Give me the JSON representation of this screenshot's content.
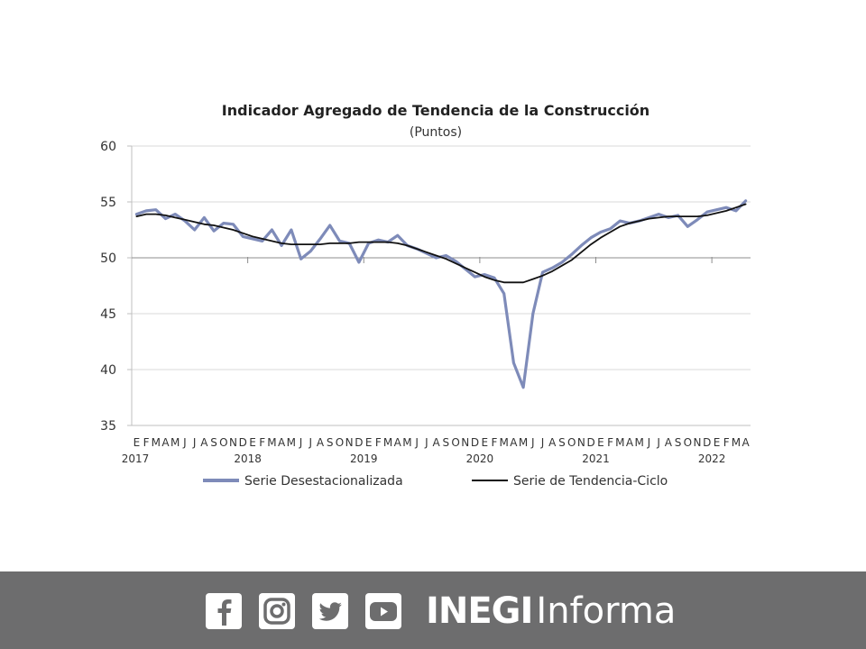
{
  "chart_data": {
    "type": "line",
    "title": "Indicador Agregado de Tendencia de la Construcción",
    "subtitle": "(Puntos)",
    "ylim": [
      35,
      60
    ],
    "yticks": [
      35,
      40,
      45,
      50,
      55,
      60
    ],
    "grid": true,
    "legend_position": "bottom",
    "month_labels": [
      "E",
      "F",
      "M",
      "A",
      "M",
      "J",
      "J",
      "A",
      "S",
      "O",
      "N",
      "D",
      "E",
      "F",
      "M",
      "A",
      "M",
      "J",
      "J",
      "A",
      "S",
      "O",
      "N",
      "D",
      "E",
      "F",
      "M",
      "A",
      "M",
      "J",
      "J",
      "A",
      "S",
      "O",
      "N",
      "D",
      "E",
      "F",
      "M",
      "A",
      "M",
      "J",
      "J",
      "A",
      "S",
      "O",
      "N",
      "D",
      "E",
      "F",
      "M",
      "A",
      "M",
      "J",
      "J",
      "A",
      "S",
      "O",
      "N",
      "D",
      "E",
      "F",
      "M",
      "A"
    ],
    "year_labels": [
      {
        "label": "2017",
        "index": 0
      },
      {
        "label": "2018",
        "index": 12
      },
      {
        "label": "2019",
        "index": 24
      },
      {
        "label": "2020",
        "index": 36
      },
      {
        "label": "2021",
        "index": 48
      },
      {
        "label": "2022",
        "index": 60
      }
    ],
    "series": [
      {
        "name": "Serie Desestacionalizada",
        "color": "#7e8bb9",
        "values": [
          53.9,
          54.2,
          54.3,
          53.5,
          53.9,
          53.3,
          52.5,
          53.6,
          52.4,
          53.1,
          53.0,
          51.9,
          51.7,
          51.5,
          52.5,
          51.1,
          52.5,
          49.9,
          50.6,
          51.7,
          52.9,
          51.5,
          51.3,
          49.6,
          51.3,
          51.6,
          51.4,
          52.0,
          51.1,
          50.8,
          50.4,
          50.0,
          50.2,
          49.7,
          49.0,
          48.3,
          48.5,
          48.2,
          46.8,
          40.6,
          38.4,
          45.0,
          48.7,
          49.1,
          49.6,
          50.3,
          51.1,
          51.8,
          52.3,
          52.6,
          53.3,
          53.1,
          53.3,
          53.6,
          53.9,
          53.6,
          53.8,
          52.8,
          53.4,
          54.1,
          54.3,
          54.5,
          54.2,
          55.1
        ]
      },
      {
        "name": "Serie de Tendencia-Ciclo",
        "color": "#111111",
        "values": [
          53.7,
          53.9,
          53.9,
          53.8,
          53.6,
          53.4,
          53.2,
          53.0,
          52.9,
          52.7,
          52.5,
          52.2,
          51.9,
          51.7,
          51.5,
          51.3,
          51.2,
          51.2,
          51.2,
          51.2,
          51.3,
          51.3,
          51.3,
          51.4,
          51.4,
          51.4,
          51.4,
          51.3,
          51.1,
          50.8,
          50.5,
          50.2,
          49.9,
          49.5,
          49.1,
          48.7,
          48.3,
          48.0,
          47.8,
          47.8,
          47.8,
          48.1,
          48.4,
          48.8,
          49.3,
          49.8,
          50.5,
          51.2,
          51.8,
          52.3,
          52.8,
          53.1,
          53.3,
          53.5,
          53.6,
          53.7,
          53.7,
          53.7,
          53.7,
          53.8,
          54.0,
          54.2,
          54.5,
          54.8
        ]
      }
    ]
  },
  "footer": {
    "social_icons": [
      "facebook-icon",
      "instagram-icon",
      "twitter-icon",
      "youtube-icon"
    ],
    "brand_bold": "INEGI",
    "brand_light": "Informa"
  }
}
